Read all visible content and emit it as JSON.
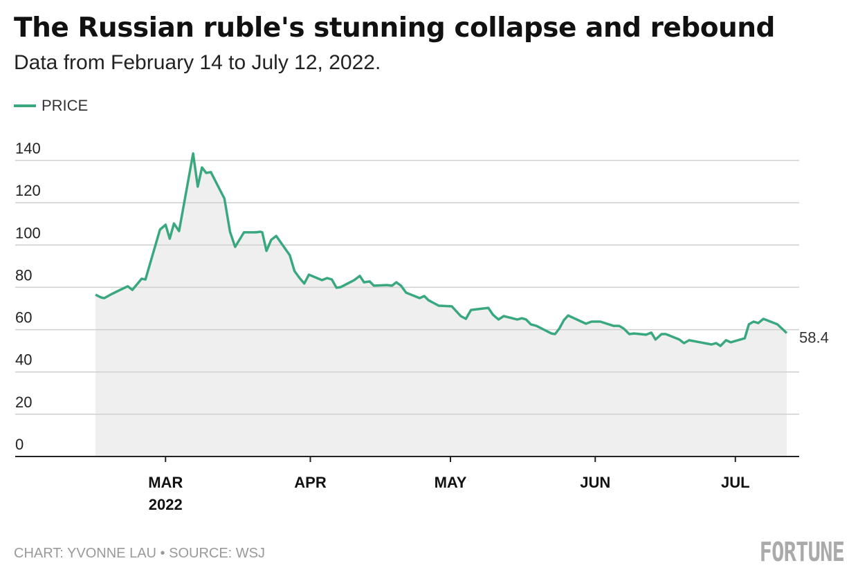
{
  "chart_data": {
    "type": "area",
    "title": "The Russian ruble's stunning collapse and rebound",
    "subtitle": "Data from February 14 to July 12, 2022.",
    "legend": [
      {
        "name": "PRICE",
        "color": "#3aa87f"
      }
    ],
    "legend_position": "top-left",
    "x_unit": "days since 2022-02-14",
    "xlim": [
      0,
      148
    ],
    "ylim": [
      0,
      140
    ],
    "yticks": [
      0,
      20,
      40,
      60,
      80,
      100,
      120,
      140
    ],
    "xticks": [
      {
        "day": 15,
        "label": "MAR",
        "sublabel": "2022"
      },
      {
        "day": 46,
        "label": "APR"
      },
      {
        "day": 76,
        "label": "MAY"
      },
      {
        "day": 107,
        "label": "JUN"
      },
      {
        "day": 137,
        "label": "JUL"
      }
    ],
    "grid": true,
    "end_label": "58.4",
    "series": [
      {
        "name": "PRICE",
        "points": [
          [
            0,
            76.5
          ],
          [
            1.2,
            75.2
          ],
          [
            1.9,
            74.9
          ],
          [
            3.2,
            76.5
          ],
          [
            5,
            78.5
          ],
          [
            6.9,
            80.5
          ],
          [
            7.9,
            78.8
          ],
          [
            9.9,
            84.1
          ],
          [
            10.7,
            83.7
          ],
          [
            13.8,
            107.3
          ],
          [
            15,
            109.6
          ],
          [
            15.9,
            103.0
          ],
          [
            16.8,
            110.2
          ],
          [
            17.9,
            106.6
          ],
          [
            20.9,
            143.3
          ],
          [
            21.9,
            127.6
          ],
          [
            22.8,
            136.7
          ],
          [
            23.7,
            134.1
          ],
          [
            24.7,
            134.5
          ],
          [
            27.6,
            122.0
          ],
          [
            28.8,
            106.3
          ],
          [
            29.9,
            99.1
          ],
          [
            31.8,
            106.0
          ],
          [
            34.4,
            106.0
          ],
          [
            35.3,
            106.3
          ],
          [
            35.7,
            106.0
          ],
          [
            36.6,
            97.2
          ],
          [
            37.6,
            102.4
          ],
          [
            38.7,
            104.3
          ],
          [
            41.6,
            95.2
          ],
          [
            42.6,
            87.7
          ],
          [
            43.7,
            84.4
          ],
          [
            44.7,
            81.8
          ],
          [
            45.7,
            86.0
          ],
          [
            48.5,
            83.4
          ],
          [
            49.6,
            84.4
          ],
          [
            50.6,
            83.7
          ],
          [
            51.6,
            79.8
          ],
          [
            52.5,
            80.1
          ],
          [
            55.4,
            83.4
          ],
          [
            56.6,
            85.4
          ],
          [
            57.5,
            82.4
          ],
          [
            58.7,
            82.8
          ],
          [
            59.6,
            80.8
          ],
          [
            62.4,
            81.1
          ],
          [
            63.5,
            80.8
          ],
          [
            64.4,
            82.4
          ],
          [
            65.4,
            80.8
          ],
          [
            66.5,
            77.5
          ],
          [
            69.4,
            74.9
          ],
          [
            70.4,
            75.9
          ],
          [
            71.3,
            73.9
          ],
          [
            73.5,
            71.3
          ],
          [
            76.3,
            71.0
          ],
          [
            78.2,
            66.4
          ],
          [
            79.3,
            65.1
          ],
          [
            80.4,
            69.3
          ],
          [
            84.1,
            70.3
          ],
          [
            85.1,
            67.1
          ],
          [
            86.3,
            64.8
          ],
          [
            87.4,
            66.4
          ],
          [
            90.3,
            64.8
          ],
          [
            91.3,
            65.4
          ],
          [
            92.2,
            64.8
          ],
          [
            93.2,
            62.5
          ],
          [
            94.4,
            61.8
          ],
          [
            97.6,
            58.2
          ],
          [
            98.4,
            57.9
          ],
          [
            99.3,
            60.5
          ],
          [
            100.3,
            64.5
          ],
          [
            101.2,
            66.7
          ],
          [
            105,
            62.8
          ],
          [
            106.2,
            63.8
          ],
          [
            108.1,
            63.8
          ],
          [
            110.9,
            61.8
          ],
          [
            112.1,
            61.8
          ],
          [
            113.1,
            60.5
          ],
          [
            114.3,
            57.9
          ],
          [
            115.3,
            58.2
          ],
          [
            117.9,
            57.6
          ],
          [
            119,
            58.6
          ],
          [
            119.9,
            55.3
          ],
          [
            121.2,
            57.9
          ],
          [
            122.1,
            57.9
          ],
          [
            125,
            55.3
          ],
          [
            126,
            53.6
          ],
          [
            127.1,
            55.0
          ],
          [
            131.9,
            53.0
          ],
          [
            132.9,
            53.6
          ],
          [
            133.8,
            52.3
          ],
          [
            135,
            55.0
          ],
          [
            136,
            54.0
          ],
          [
            139,
            55.9
          ],
          [
            139.9,
            62.5
          ],
          [
            140.9,
            63.8
          ],
          [
            141.9,
            63.1
          ],
          [
            143,
            65.1
          ],
          [
            146,
            62.5
          ],
          [
            148,
            58.4
          ]
        ]
      }
    ]
  },
  "footer": {
    "credit": "CHART: YVONNE LAU • SOURCE: WSJ",
    "logo": "FORTUNE"
  }
}
